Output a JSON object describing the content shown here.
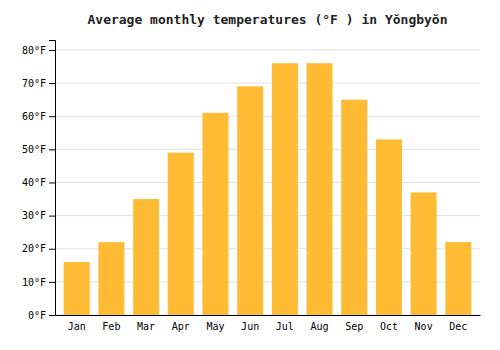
{
  "chart_data": {
    "type": "bar",
    "title": "Average monthly temperatures (°F ) in Yŏngbyŏn",
    "categories": [
      "Jan",
      "Feb",
      "Mar",
      "Apr",
      "May",
      "Jun",
      "Jul",
      "Aug",
      "Sep",
      "Oct",
      "Nov",
      "Dec"
    ],
    "values": [
      16,
      22,
      35,
      49,
      61,
      69,
      76,
      76,
      65,
      53,
      37,
      22
    ],
    "color": "#FFBB33",
    "ylim": [
      0,
      83
    ],
    "yticks": [
      {
        "value": 0,
        "label": "0°F"
      },
      {
        "value": 10,
        "label": "10°F"
      },
      {
        "value": 20,
        "label": "20°F"
      },
      {
        "value": 30,
        "label": "30°F"
      },
      {
        "value": 40,
        "label": "40°F"
      },
      {
        "value": 50,
        "label": "50°F"
      },
      {
        "value": 60,
        "label": "60°F"
      },
      {
        "value": 70,
        "label": "70°F"
      },
      {
        "value": 80,
        "label": "80°F"
      }
    ],
    "grid": true
  }
}
